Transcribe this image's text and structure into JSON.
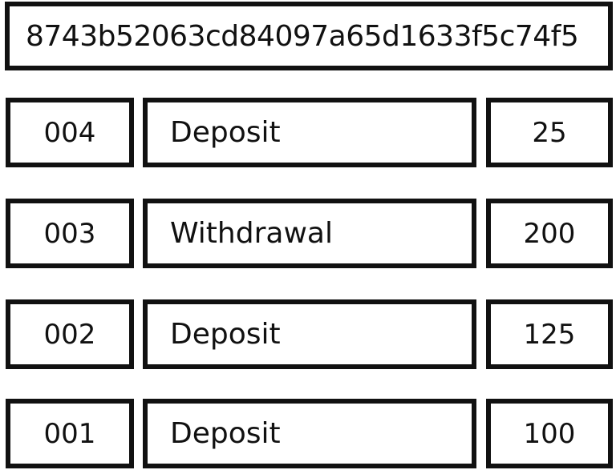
{
  "header": {
    "hash": "8743b52063cd84097a65d1633f5c74f5"
  },
  "transactions": [
    {
      "id": "004",
      "type": "Deposit",
      "amount": "25"
    },
    {
      "id": "003",
      "type": "Withdrawal",
      "amount": "200"
    },
    {
      "id": "002",
      "type": "Deposit",
      "amount": "125"
    },
    {
      "id": "001",
      "type": "Deposit",
      "amount": "100"
    }
  ]
}
